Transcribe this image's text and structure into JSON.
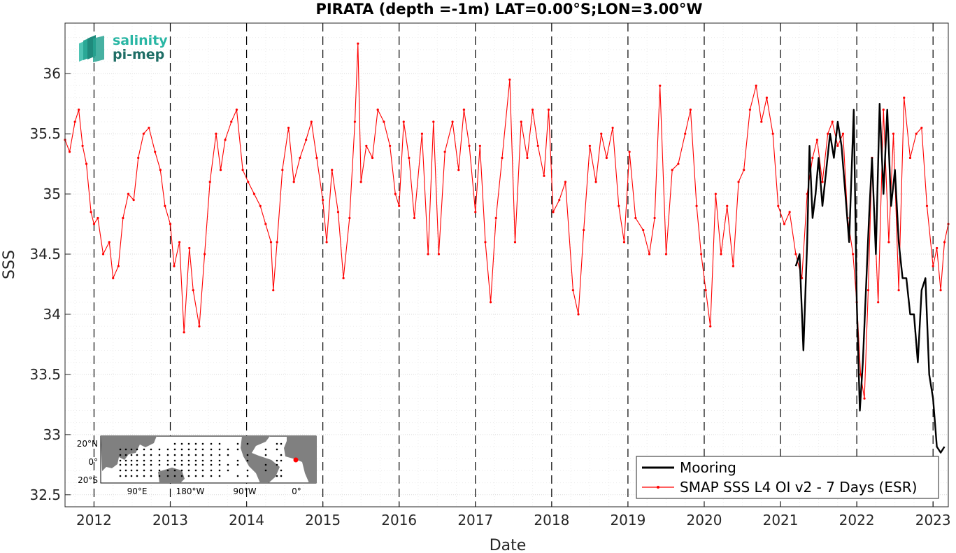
{
  "chart_data": {
    "type": "line",
    "title": "PIRATA (depth =-1m) LAT=0.00°S;LON=3.00°W",
    "xlabel": "Date",
    "ylabel": "SSS",
    "xlim": [
      2011.62,
      2023.2
    ],
    "ylim": [
      32.4,
      36.42
    ],
    "x_ticks": [
      "2012",
      "2013",
      "2014",
      "2015",
      "2016",
      "2017",
      "2018",
      "2019",
      "2020",
      "2021",
      "2022",
      "2023"
    ],
    "y_ticks": [
      "32.5",
      "33",
      "33.5",
      "34",
      "34.5",
      "35",
      "35.5",
      "36"
    ],
    "year_boundaries": [
      2012,
      2013,
      2014,
      2015,
      2016,
      2017,
      2018,
      2019,
      2020,
      2021,
      2022,
      2023
    ],
    "grid": true,
    "legend_position": "bottom-right",
    "series": [
      {
        "name": "SMAP SSS L4 OI v2 - 7 Days (ESR)",
        "color": "#ff0000",
        "marker": "dot",
        "x": [
          2011.62,
          2011.68,
          2011.75,
          2011.8,
          2011.85,
          2011.9,
          2011.96,
          2012.0,
          2012.05,
          2012.12,
          2012.2,
          2012.25,
          2012.32,
          2012.38,
          2012.45,
          2012.52,
          2012.58,
          2012.65,
          2012.72,
          2012.8,
          2012.87,
          2012.93,
          2013.0,
          2013.05,
          2013.12,
          2013.18,
          2013.25,
          2013.3,
          2013.38,
          2013.45,
          2013.52,
          2013.6,
          2013.66,
          2013.72,
          2013.8,
          2013.87,
          2013.95,
          2014.02,
          2014.1,
          2014.18,
          2014.25,
          2014.32,
          2014.35,
          2014.4,
          2014.47,
          2014.55,
          2014.62,
          2014.7,
          2014.78,
          2014.85,
          2014.92,
          2015.0,
          2015.05,
          2015.12,
          2015.2,
          2015.27,
          2015.35,
          2015.42,
          2015.46,
          2015.5,
          2015.57,
          2015.65,
          2015.72,
          2015.8,
          2015.88,
          2015.95,
          2016.0,
          2016.06,
          2016.13,
          2016.2,
          2016.3,
          2016.38,
          2016.45,
          2016.52,
          2016.6,
          2016.7,
          2016.78,
          2016.85,
          2016.92,
          2017.0,
          2017.06,
          2017.13,
          2017.2,
          2017.27,
          2017.35,
          2017.45,
          2017.52,
          2017.6,
          2017.68,
          2017.75,
          2017.82,
          2017.9,
          2017.96,
          2018.02,
          2018.1,
          2018.18,
          2018.28,
          2018.35,
          2018.42,
          2018.5,
          2018.58,
          2018.65,
          2018.72,
          2018.8,
          2018.88,
          2018.95,
          2019.02,
          2019.1,
          2019.2,
          2019.28,
          2019.35,
          2019.42,
          2019.5,
          2019.58,
          2019.66,
          2019.75,
          2019.82,
          2019.9,
          2019.96,
          2020.02,
          2020.08,
          2020.15,
          2020.22,
          2020.3,
          2020.38,
          2020.45,
          2020.52,
          2020.6,
          2020.68,
          2020.75,
          2020.82,
          2020.9,
          2020.97,
          2021.05,
          2021.12,
          2021.2,
          2021.28,
          2021.35,
          2021.42,
          2021.48,
          2021.55,
          2021.62,
          2021.68,
          2021.75,
          2021.82,
          2021.88,
          2021.95,
          2022.0,
          2022.05,
          2022.1,
          2022.15,
          2022.2,
          2022.28,
          2022.35,
          2022.42,
          2022.48,
          2022.55,
          2022.62,
          2022.7,
          2022.78,
          2022.85,
          2022.92,
          2023.0,
          2023.05,
          2023.1,
          2023.15,
          2023.2
        ],
        "y": [
          35.45,
          35.35,
          35.6,
          35.7,
          35.4,
          35.25,
          34.85,
          34.75,
          34.8,
          34.5,
          34.6,
          34.3,
          34.4,
          34.8,
          35.0,
          34.95,
          35.3,
          35.5,
          35.55,
          35.35,
          35.2,
          34.9,
          34.75,
          34.4,
          34.6,
          33.85,
          34.55,
          34.2,
          33.9,
          34.5,
          35.1,
          35.5,
          35.2,
          35.45,
          35.6,
          35.7,
          35.2,
          35.1,
          35.0,
          34.9,
          34.75,
          34.6,
          34.2,
          34.6,
          35.2,
          35.55,
          35.1,
          35.3,
          35.45,
          35.6,
          35.3,
          34.95,
          34.6,
          35.2,
          34.85,
          34.3,
          34.8,
          35.6,
          36.25,
          35.1,
          35.4,
          35.3,
          35.7,
          35.6,
          35.4,
          35.0,
          34.9,
          35.6,
          35.3,
          34.8,
          35.5,
          34.5,
          35.6,
          34.5,
          35.35,
          35.6,
          35.2,
          35.7,
          35.4,
          34.85,
          35.4,
          34.6,
          34.1,
          34.8,
          35.3,
          35.95,
          34.6,
          35.6,
          35.3,
          35.7,
          35.4,
          35.15,
          35.7,
          34.85,
          34.95,
          35.1,
          34.2,
          34.0,
          34.7,
          35.4,
          35.1,
          35.5,
          35.3,
          35.55,
          34.9,
          34.6,
          35.35,
          34.8,
          34.7,
          34.5,
          34.8,
          35.9,
          34.5,
          35.2,
          35.25,
          35.5,
          35.7,
          34.9,
          34.5,
          34.2,
          33.9,
          35.0,
          34.5,
          34.9,
          34.4,
          35.1,
          35.2,
          35.7,
          35.9,
          35.6,
          35.8,
          35.5,
          34.9,
          34.75,
          34.85,
          34.5,
          34.3,
          35.0,
          35.3,
          35.45,
          35.1,
          35.5,
          35.6,
          35.4,
          35.5,
          34.8,
          34.5,
          34.1,
          33.5,
          33.3,
          34.2,
          35.3,
          34.1,
          35.7,
          34.6,
          35.5,
          34.2,
          35.8,
          35.3,
          35.5,
          35.55,
          34.9,
          34.4,
          34.55,
          34.2,
          34.6,
          34.75
        ]
      },
      {
        "name": "Mooring",
        "color": "#000000",
        "marker": "none",
        "x": [
          2021.2,
          2021.25,
          2021.3,
          2021.35,
          2021.38,
          2021.42,
          2021.46,
          2021.5,
          2021.55,
          2021.6,
          2021.65,
          2021.7,
          2021.75,
          2021.8,
          2021.85,
          2021.9,
          2021.96,
          2022.0,
          2022.04,
          2022.08,
          2022.12,
          2022.16,
          2022.2,
          2022.25,
          2022.3,
          2022.35,
          2022.4,
          2022.45,
          2022.5,
          2022.55,
          2022.6,
          2022.65,
          2022.7,
          2022.75,
          2022.8,
          2022.85,
          2022.9,
          2022.95,
          2023.0,
          2023.05,
          2023.1,
          2023.15
        ],
        "y": [
          34.4,
          34.5,
          33.7,
          34.6,
          35.4,
          34.8,
          35.0,
          35.3,
          34.9,
          35.2,
          35.5,
          35.3,
          35.6,
          35.4,
          35.0,
          34.6,
          35.7,
          34.1,
          33.2,
          33.6,
          34.2,
          34.8,
          35.3,
          34.5,
          35.75,
          35.0,
          35.7,
          34.9,
          35.2,
          34.6,
          34.3,
          34.3,
          34.0,
          34.0,
          33.6,
          34.2,
          34.3,
          33.5,
          33.3,
          32.9,
          32.85,
          32.9
        ]
      }
    ]
  },
  "logo": {
    "line1": "salinity",
    "line2": "pi-mep"
  },
  "inset_map": {
    "lat_labels": [
      "20°N",
      "0°",
      "20°S"
    ],
    "lon_labels": [
      "90°E",
      "180°W",
      "90°W",
      "0°"
    ]
  },
  "colors": {
    "mooring": "#000000",
    "smap": "#ff0000",
    "logo_top": "#29b6a4",
    "logo_bottom": "#1f6e66",
    "land": "#808080"
  }
}
